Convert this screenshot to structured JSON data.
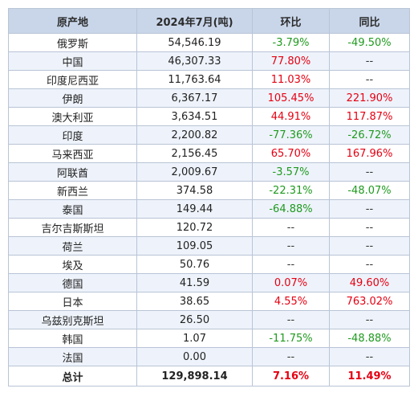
{
  "headers": [
    "原产地",
    "2024年7月(吨)",
    "环比",
    "同比"
  ],
  "rows": [
    {
      "origin": "俄罗斯",
      "value": "54,546.19",
      "mom": "-3.79%",
      "yoy": "-49.50%"
    },
    {
      "origin": "中国",
      "value": "46,307.33",
      "mom": "77.80%",
      "yoy": "--"
    },
    {
      "origin": "印度尼西亚",
      "value": "11,763.64",
      "mom": "11.03%",
      "yoy": "--"
    },
    {
      "origin": "伊朗",
      "value": "6,367.17",
      "mom": "105.45%",
      "yoy": "221.90%"
    },
    {
      "origin": "澳大利亚",
      "value": "3,634.51",
      "mom": "44.91%",
      "yoy": "117.87%"
    },
    {
      "origin": "印度",
      "value": "2,200.82",
      "mom": "-77.36%",
      "yoy": "-26.72%"
    },
    {
      "origin": "马来西亚",
      "value": "2,156.45",
      "mom": "65.70%",
      "yoy": "167.96%"
    },
    {
      "origin": "阿联酋",
      "value": "2,009.67",
      "mom": "-3.57%",
      "yoy": "--"
    },
    {
      "origin": "新西兰",
      "value": "374.58",
      "mom": "-22.31%",
      "yoy": "-48.07%"
    },
    {
      "origin": "泰国",
      "value": "149.44",
      "mom": "-64.88%",
      "yoy": "--"
    },
    {
      "origin": "吉尔吉斯斯坦",
      "value": "120.72",
      "mom": "--",
      "yoy": "--"
    },
    {
      "origin": "荷兰",
      "value": "109.05",
      "mom": "--",
      "yoy": "--"
    },
    {
      "origin": "埃及",
      "value": "50.76",
      "mom": "--",
      "yoy": "--"
    },
    {
      "origin": "德国",
      "value": "41.59",
      "mom": "0.07%",
      "yoy": "49.60%"
    },
    {
      "origin": "日本",
      "value": "38.65",
      "mom": "4.55%",
      "yoy": "763.02%"
    },
    {
      "origin": "乌兹别克斯坦",
      "value": "26.50",
      "mom": "--",
      "yoy": "--"
    },
    {
      "origin": "韩国",
      "value": "1.07",
      "mom": "-11.75%",
      "yoy": "-48.88%"
    },
    {
      "origin": "法国",
      "value": "0.00",
      "mom": "--",
      "yoy": "--"
    }
  ],
  "total": {
    "origin": "总计",
    "value": "129,898.14",
    "mom": "7.16%",
    "yoy": "11.49%"
  },
  "colors": {
    "positive": "#e60012",
    "negative": "#1f9a1f",
    "header_bg": "#c9d6ea",
    "stripe_bg": "#eef3fb",
    "border": "#b9c4d6"
  }
}
